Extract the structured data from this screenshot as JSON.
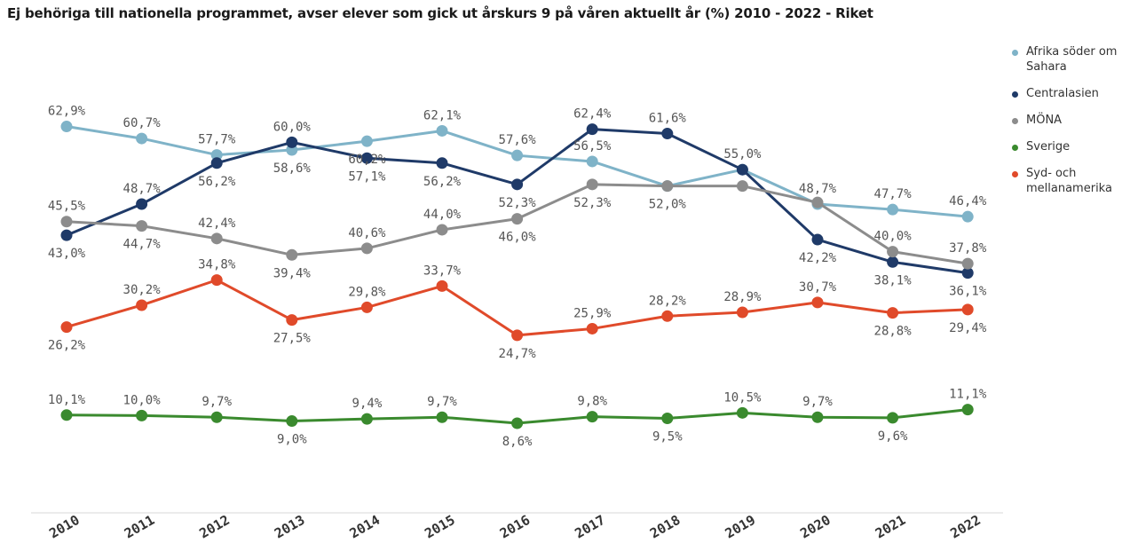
{
  "chart_data": {
    "type": "line",
    "title": "Ej behöriga till nationella programmet, avser elever som gick ut årskurs 9 på våren aktuellt år (%) 2010 - 2022 - Riket",
    "categories": [
      "2010",
      "2011",
      "2012",
      "2013",
      "2014",
      "2015",
      "2016",
      "2017",
      "2018",
      "2019",
      "2020",
      "2021",
      "2022"
    ],
    "ylim": [
      0,
      70
    ],
    "grid": false,
    "legend_position": "right",
    "series": [
      {
        "name": "Afrika söder om Sahara",
        "color": "#7fb3c8",
        "values": [
          62.9,
          60.7,
          57.7,
          58.6,
          60.2,
          62.1,
          57.6,
          56.5,
          52.0,
          55.0,
          48.7,
          47.7,
          46.4
        ],
        "labels": [
          "62,9%",
          "60,7%",
          "57,7%",
          "58,6%",
          "60,2%",
          "62,1%",
          "57,6%",
          "56,5%",
          "",
          "",
          "48,7%",
          "47,7%",
          "46,4%"
        ]
      },
      {
        "name": "Centralasien",
        "color": "#1f3a68",
        "values": [
          43.0,
          48.7,
          56.2,
          60.0,
          57.1,
          56.2,
          52.3,
          62.4,
          61.6,
          55.0,
          42.2,
          38.1,
          36.1
        ],
        "labels": [
          "43,0%",
          "48,7%",
          "56,2%",
          "60,0%",
          "57,1%",
          "56,2%",
          "52,3%",
          "62,4%",
          "61,6%",
          "55,0%",
          "42,2%",
          "38,1%",
          "36,1%"
        ]
      },
      {
        "name": "MÖNA",
        "color": "#8c8c8c",
        "values": [
          45.5,
          44.7,
          42.4,
          39.4,
          40.6,
          44.0,
          46.0,
          52.3,
          52.0,
          52.0,
          49.0,
          40.0,
          37.8
        ],
        "labels": [
          "45,5%",
          "44,7%",
          "42,4%",
          "39,4%",
          "40,6%",
          "44,0%",
          "46,0%",
          "52,3%",
          "52,0%",
          "",
          "",
          "40,0%",
          "37,8%"
        ]
      },
      {
        "name": "Sverige",
        "color": "#3a8a2e",
        "values": [
          10.1,
          10.0,
          9.7,
          9.0,
          9.4,
          9.7,
          8.6,
          9.8,
          9.5,
          10.5,
          9.7,
          9.6,
          11.1
        ],
        "labels": [
          "10,1%",
          "10,0%",
          "9,7%",
          "9,0%",
          "9,4%",
          "9,7%",
          "8,6%",
          "9,8%",
          "9,5%",
          "10,5%",
          "9,7%",
          "9,6%",
          "11,1%"
        ]
      },
      {
        "name": "Syd- och mellanamerika",
        "color": "#e04a2a",
        "values": [
          26.2,
          30.2,
          34.8,
          27.5,
          29.8,
          33.7,
          24.7,
          25.9,
          28.2,
          28.9,
          30.7,
          28.8,
          29.4
        ],
        "labels": [
          "26,2%",
          "30,2%",
          "34,8%",
          "27,5%",
          "29,8%",
          "33,7%",
          "24,7%",
          "25,9%",
          "28,2%",
          "28,9%",
          "30,7%",
          "28,8%",
          "29,4%"
        ]
      }
    ]
  }
}
